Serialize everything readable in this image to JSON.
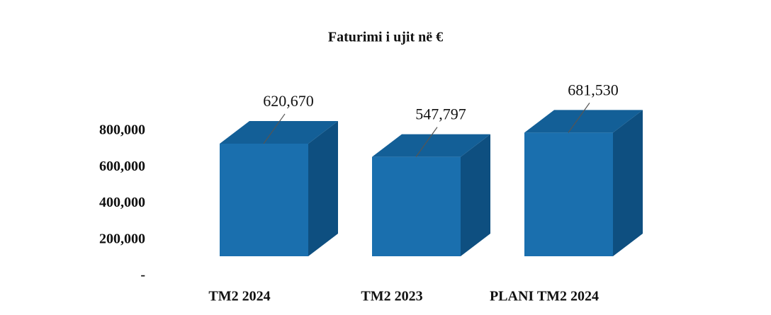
{
  "chart_data": {
    "type": "bar",
    "title": "Faturimi  i ujit në €",
    "categories": [
      "TM2 2024",
      "TM2 2023",
      "PLANI TM2 2024"
    ],
    "values": [
      620670,
      547797,
      681530
    ],
    "value_labels": [
      "620,670",
      "547,797",
      "681,530"
    ],
    "color": "#1a6fae",
    "ylim": [
      0,
      800000
    ],
    "yticks": [
      {
        "value": 0,
        "label": "-"
      },
      {
        "value": 200000,
        "label": "200,000"
      },
      {
        "value": 400000,
        "label": "400,000"
      },
      {
        "value": 600000,
        "label": "600,000"
      },
      {
        "value": 800000,
        "label": "800,000"
      }
    ]
  }
}
